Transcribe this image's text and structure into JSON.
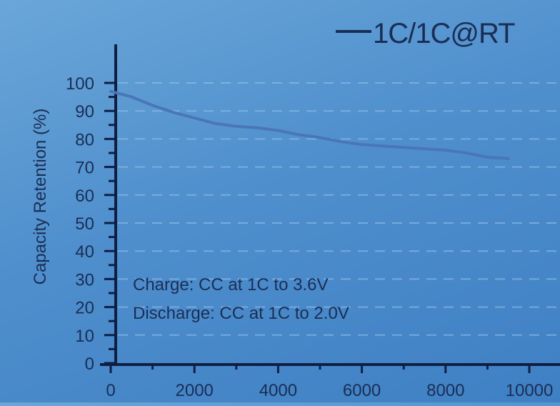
{
  "chart_data": {
    "type": "line",
    "title": "",
    "xlabel": "",
    "ylabel": "Capacity Retention (%)",
    "xlim": [
      0,
      11000
    ],
    "ylim": [
      0,
      105
    ],
    "x_ticks": [
      0,
      2000,
      4000,
      6000,
      8000,
      10000
    ],
    "y_ticks": [
      0,
      10,
      20,
      30,
      40,
      50,
      60,
      70,
      80,
      90,
      100
    ],
    "grid": true,
    "legend_position": "top-right",
    "series": [
      {
        "name": "1C/1C@RT",
        "color": "#4a76b8",
        "x": [
          0,
          500,
          1000,
          1500,
          2000,
          2500,
          3000,
          3500,
          4000,
          4500,
          5000,
          5500,
          6000,
          6500,
          7000,
          7500,
          8000,
          8500,
          9000,
          9500
        ],
        "y": [
          97,
          95,
          92,
          89.5,
          87.5,
          85.5,
          84.5,
          84,
          83,
          81.5,
          80.5,
          79,
          78,
          77.5,
          77,
          76.5,
          76,
          75,
          73.5,
          73
        ]
      }
    ],
    "annotations": [
      "Charge: CC at 1C to 3.6V",
      "Discharge: CC at 1C to 2.0V"
    ]
  }
}
